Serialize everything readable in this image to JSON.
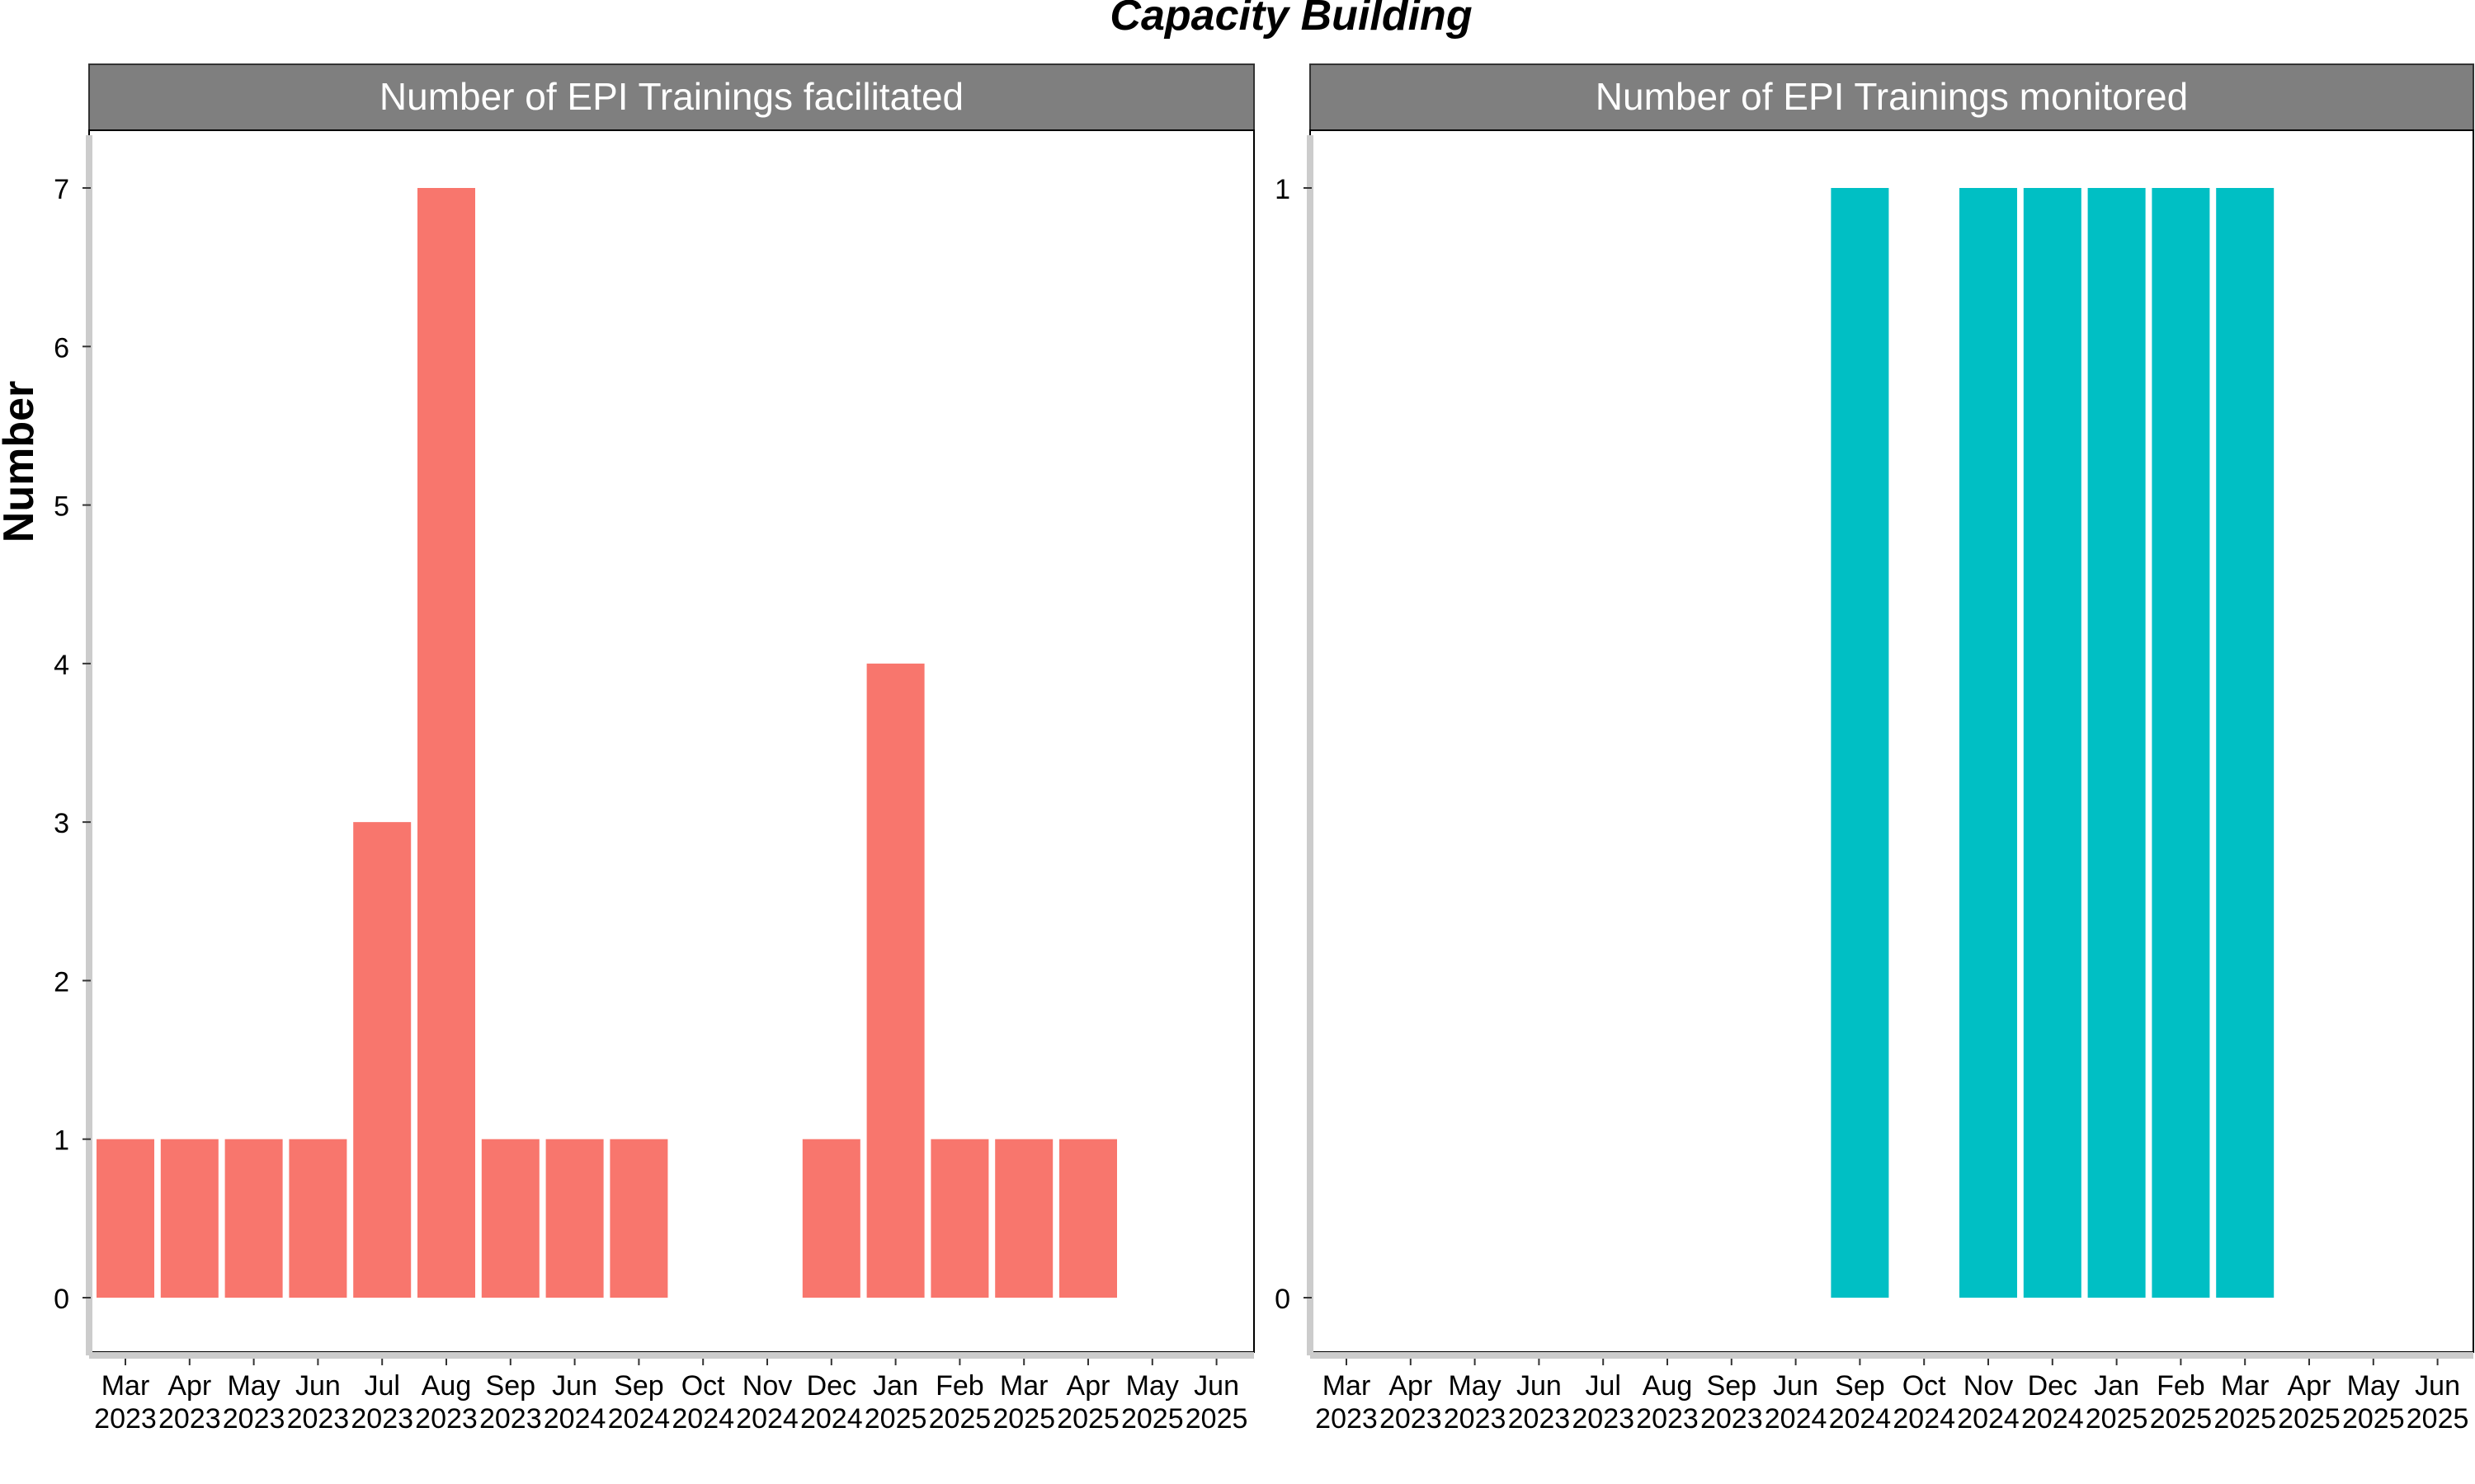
{
  "chart_data": {
    "title": "Capacity Building",
    "ylabel": "Number",
    "xlabel": "",
    "colors": {
      "facilitated": "#F8766D",
      "monitored": "#00BFC4",
      "strip": "#7F7F7F",
      "axis": "#CCCCCC"
    },
    "panels": [
      {
        "type": "bar",
        "strip_label": "Number of EPI Trainings facilitated",
        "categories": [
          "Mar\n2023",
          "Apr\n2023",
          "May\n2023",
          "Jun\n2023",
          "Jul\n2023",
          "Aug\n2023",
          "Sep\n2023",
          "Jun\n2024",
          "Sep\n2024",
          "Oct\n2024",
          "Nov\n2024",
          "Dec\n2024",
          "Jan\n2025",
          "Feb\n2025",
          "Mar\n2025",
          "Apr\n2025",
          "May\n2025",
          "Jun\n2025"
        ],
        "values": [
          1,
          1,
          1,
          1,
          3,
          7,
          1,
          1,
          1,
          null,
          null,
          1,
          4,
          1,
          1,
          1,
          null,
          null
        ],
        "ylim": [
          0,
          7
        ],
        "yticks": [
          0,
          1,
          2,
          3,
          4,
          5,
          6,
          7
        ]
      },
      {
        "type": "bar",
        "strip_label": "Number of EPI Trainings monitored",
        "categories": [
          "Mar\n2023",
          "Apr\n2023",
          "May\n2023",
          "Jun\n2023",
          "Jul\n2023",
          "Aug\n2023",
          "Sep\n2023",
          "Jun\n2024",
          "Sep\n2024",
          "Oct\n2024",
          "Nov\n2024",
          "Dec\n2024",
          "Jan\n2025",
          "Feb\n2025",
          "Mar\n2025",
          "Apr\n2025",
          "May\n2025",
          "Jun\n2025"
        ],
        "values": [
          null,
          null,
          null,
          null,
          null,
          null,
          null,
          null,
          1,
          null,
          1,
          1,
          1,
          1,
          1,
          null,
          null,
          null
        ],
        "ylim": [
          0,
          1
        ],
        "yticks": [
          0,
          1
        ]
      }
    ]
  }
}
